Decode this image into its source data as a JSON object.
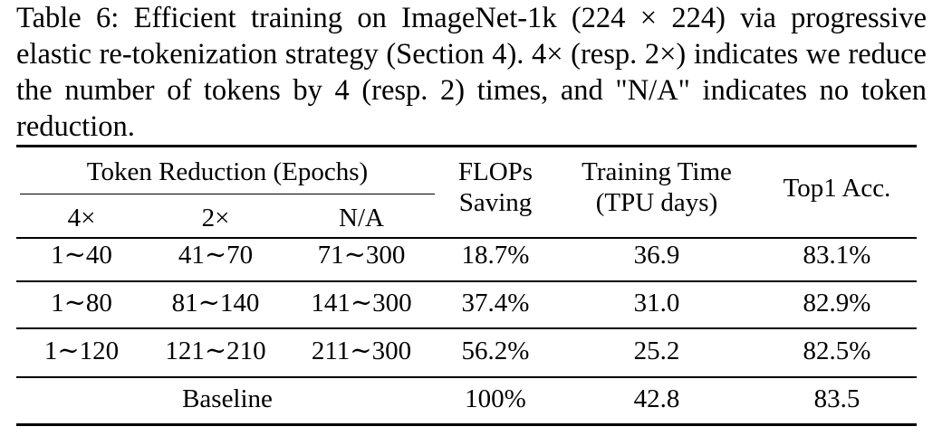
{
  "caption": {
    "label": "Table 6:",
    "text": "Efficient training on ImageNet-1k (224 × 224) via progressive elastic re-tokenization strategy (Section 4). 4× (resp. 2×) indicates we reduce the number of tokens by 4 (resp. 2) times, and \"N/A\" indicates no token reduction."
  },
  "table": {
    "group_header": "Token Reduction (Epochs)",
    "sub_headers": [
      "4×",
      "2×",
      "N/A"
    ],
    "flops_header": [
      "FLOPs",
      "Saving"
    ],
    "time_header": [
      "Training Time",
      "(TPU days)"
    ],
    "acc_header": "Top1 Acc.",
    "rows": [
      [
        "1∼40",
        "41∼70",
        "71∼300",
        "18.7%",
        "36.9",
        "83.1%"
      ],
      [
        "1∼80",
        "81∼140",
        "141∼300",
        "37.4%",
        "31.0",
        "82.9%"
      ],
      [
        "1∼120",
        "121∼210",
        "211∼300",
        "56.2%",
        "25.2",
        "82.5%"
      ]
    ],
    "baseline": [
      "Baseline",
      "100%",
      "42.8",
      "83.5"
    ]
  }
}
